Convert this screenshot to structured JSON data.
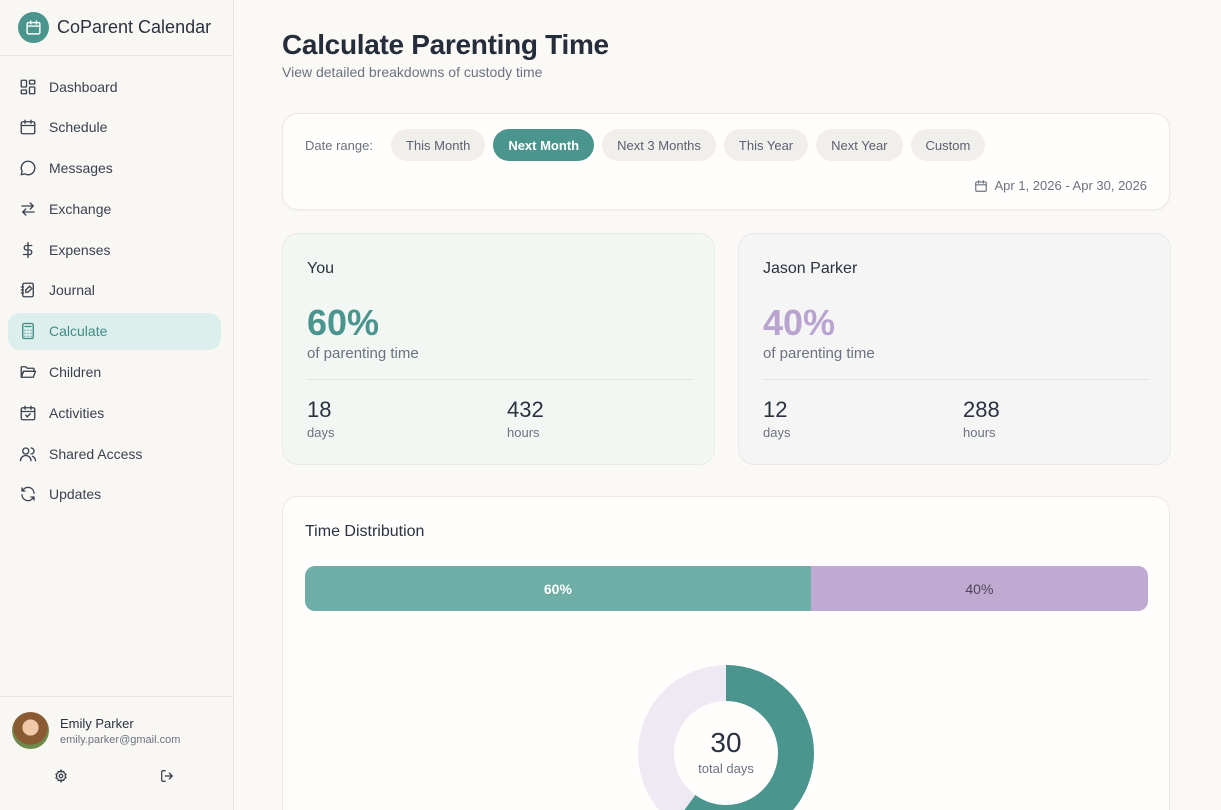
{
  "app": {
    "title": "CoParent Calendar"
  },
  "sidebar": {
    "items": [
      {
        "label": "Dashboard",
        "icon": "dashboard-icon"
      },
      {
        "label": "Schedule",
        "icon": "calendar-icon"
      },
      {
        "label": "Messages",
        "icon": "message-icon"
      },
      {
        "label": "Exchange",
        "icon": "exchange-icon"
      },
      {
        "label": "Expenses",
        "icon": "dollar-icon"
      },
      {
        "label": "Journal",
        "icon": "journal-icon"
      },
      {
        "label": "Calculate",
        "icon": "calculator-icon",
        "active": true
      },
      {
        "label": "Children",
        "icon": "folder-icon"
      },
      {
        "label": "Activities",
        "icon": "calendar-check-icon"
      },
      {
        "label": "Shared Access",
        "icon": "users-icon"
      },
      {
        "label": "Updates",
        "icon": "refresh-icon"
      }
    ],
    "user": {
      "name": "Emily Parker",
      "email": "emily.parker@gmail.com"
    }
  },
  "header": {
    "title": "Calculate Parenting Time",
    "subtitle": "View detailed breakdowns of custody time"
  },
  "date_range": {
    "label": "Date range:",
    "options": [
      "This Month",
      "Next Month",
      "Next 3 Months",
      "This Year",
      "Next Year",
      "Custom"
    ],
    "selected": "Next Month",
    "display": "Apr 1, 2026 - Apr 30, 2026"
  },
  "parents": [
    {
      "name": "You",
      "percent": "60%",
      "percent_label": "of parenting time",
      "days": "18",
      "days_label": "days",
      "hours": "432",
      "hours_label": "hours"
    },
    {
      "name": "Jason Parker",
      "percent": "40%",
      "percent_label": "of parenting time",
      "days": "12",
      "days_label": "days",
      "hours": "288",
      "hours_label": "hours"
    }
  ],
  "distribution": {
    "title": "Time Distribution",
    "share_you": 60,
    "share_other": 40,
    "label_you": "60%",
    "label_other": "40%",
    "total_days": "30",
    "total_label": "total days"
  },
  "colors": {
    "accent": "#4a958d",
    "you_bar": "#6fada7",
    "other_bar": "#c0aad2",
    "other_pct": "#b9a3cf",
    "donut_other": "#efe9f4"
  }
}
